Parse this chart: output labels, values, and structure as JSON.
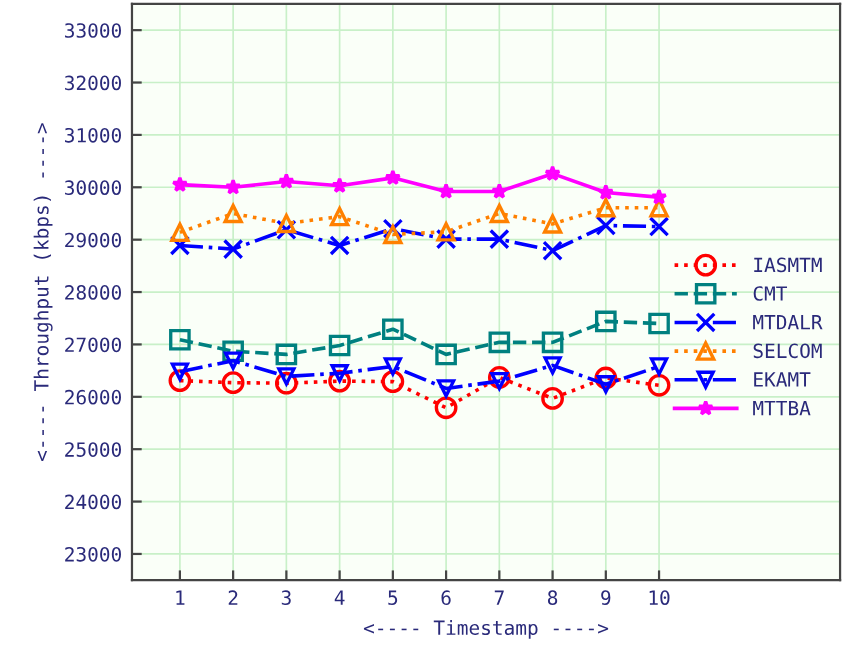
{
  "chart_data": {
    "type": "line",
    "xlabel": "<---- Timestamp ---->",
    "ylabel": "<---- Throughput (kbps) ---->",
    "x": [
      1,
      2,
      3,
      4,
      5,
      6,
      7,
      8,
      9,
      10
    ],
    "xlim": [
      0.1,
      13.4
    ],
    "xticks": [
      1,
      2,
      3,
      4,
      5,
      6,
      7,
      8,
      9,
      10
    ],
    "ylim": [
      22500,
      33500
    ],
    "yticks": [
      23000,
      24000,
      25000,
      26000,
      27000,
      28000,
      29000,
      30000,
      31000,
      32000,
      33000
    ],
    "grid": true,
    "legend": "right",
    "series": [
      {
        "name": "IASMTM",
        "color": "#ff0000",
        "marker": "circle",
        "line_style": "dotted",
        "values": [
          26310,
          26270,
          26260,
          26300,
          26290,
          25790,
          26370,
          25970,
          26360,
          26220
        ]
      },
      {
        "name": "CMT",
        "color": "#008080",
        "marker": "square",
        "line_style": "dashed",
        "values": [
          27090,
          26870,
          26810,
          26980,
          27290,
          26810,
          27040,
          27040,
          27440,
          27400
        ]
      },
      {
        "name": "MTDALR",
        "color": "#0000ff",
        "marker": "cross",
        "line_style": "dashdot",
        "values": [
          28890,
          28820,
          29190,
          28890,
          29210,
          29010,
          29010,
          28790,
          29270,
          29250
        ]
      },
      {
        "name": "SELCOM",
        "color": "#ff8000",
        "marker": "triangle",
        "line_style": "dotted",
        "values": [
          29140,
          29500,
          29310,
          29440,
          29100,
          29150,
          29500,
          29300,
          29610,
          29610
        ]
      },
      {
        "name": "EKAMT",
        "color": "#0000ff",
        "marker": "triangle_down",
        "line_style": "dashdot",
        "values": [
          26480,
          26690,
          26390,
          26450,
          26580,
          26160,
          26300,
          26600,
          26240,
          26580
        ]
      },
      {
        "name": "MTTBA",
        "color": "#ff00ff",
        "marker": "star",
        "line_style": "solid",
        "values": [
          30050,
          30000,
          30110,
          30030,
          30180,
          29920,
          29920,
          30260,
          29900,
          29810
        ]
      }
    ]
  }
}
